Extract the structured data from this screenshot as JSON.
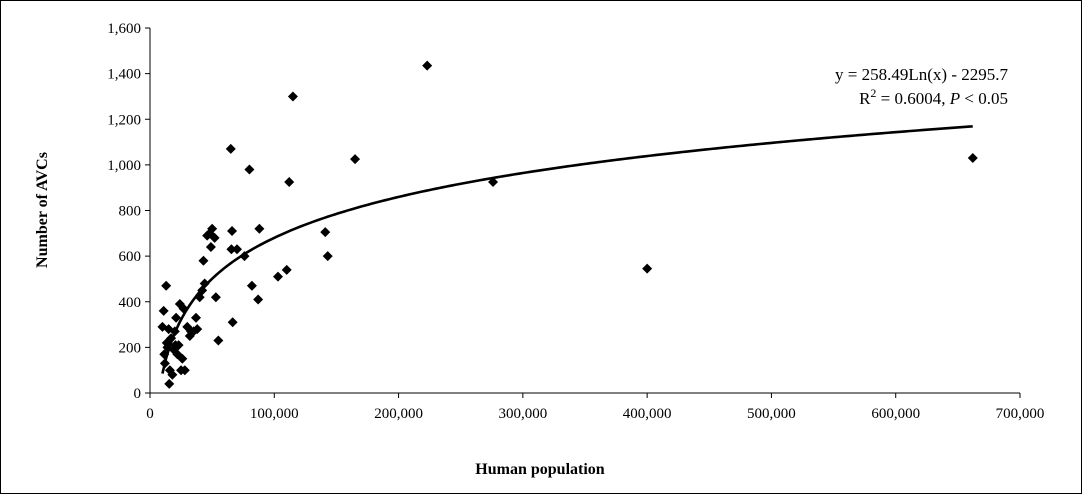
{
  "chart_data": {
    "type": "scatter",
    "title": "",
    "xlabel": "Human population",
    "ylabel": "Number of AVCs",
    "xlim": [
      0,
      700000
    ],
    "ylim": [
      0,
      1600
    ],
    "x_ticks": [
      0,
      100000,
      200000,
      300000,
      400000,
      500000,
      600000,
      700000
    ],
    "x_tick_labels": [
      "0",
      "100,000",
      "200,000",
      "300,000",
      "400,000",
      "500,000",
      "600,000",
      "700,000"
    ],
    "y_ticks": [
      0,
      200,
      400,
      600,
      800,
      1000,
      1200,
      1400,
      1600
    ],
    "y_tick_labels": [
      "0",
      "200",
      "400",
      "600",
      "800",
      "1,000",
      "1,200",
      "1,400",
      "1,600"
    ],
    "grid": false,
    "legend": false,
    "marker": "diamond",
    "marker_color": "#000000",
    "points": [
      [
        10000,
        290
      ],
      [
        11000,
        360
      ],
      [
        11500,
        170
      ],
      [
        12000,
        130
      ],
      [
        13000,
        470
      ],
      [
        13500,
        220
      ],
      [
        14000,
        200
      ],
      [
        15000,
        280
      ],
      [
        15500,
        40
      ],
      [
        16000,
        100
      ],
      [
        17000,
        240
      ],
      [
        18000,
        80
      ],
      [
        19000,
        190
      ],
      [
        20000,
        270
      ],
      [
        20500,
        210
      ],
      [
        21000,
        330
      ],
      [
        22000,
        170
      ],
      [
        23000,
        210
      ],
      [
        24000,
        390
      ],
      [
        25000,
        100
      ],
      [
        26000,
        150
      ],
      [
        27000,
        370
      ],
      [
        28000,
        100
      ],
      [
        30000,
        290
      ],
      [
        32000,
        250
      ],
      [
        33000,
        270
      ],
      [
        35000,
        270
      ],
      [
        37000,
        330
      ],
      [
        38000,
        280
      ],
      [
        40000,
        420
      ],
      [
        42000,
        450
      ],
      [
        43000,
        580
      ],
      [
        44000,
        480
      ],
      [
        46000,
        690
      ],
      [
        48000,
        700
      ],
      [
        49000,
        640
      ],
      [
        50000,
        720
      ],
      [
        52000,
        680
      ],
      [
        53000,
        420
      ],
      [
        55000,
        230
      ],
      [
        65000,
        1070
      ],
      [
        65500,
        630
      ],
      [
        66000,
        710
      ],
      [
        66500,
        310
      ],
      [
        70000,
        630
      ],
      [
        76000,
        600
      ],
      [
        80000,
        980
      ],
      [
        82000,
        470
      ],
      [
        87000,
        410
      ],
      [
        88000,
        720
      ],
      [
        103000,
        510
      ],
      [
        110000,
        540
      ],
      [
        112000,
        925
      ],
      [
        115000,
        1300
      ],
      [
        141000,
        705
      ],
      [
        143000,
        600
      ],
      [
        165000,
        1025
      ],
      [
        223000,
        1435
      ],
      [
        276000,
        925
      ],
      [
        400000,
        545
      ],
      [
        662000,
        1030
      ]
    ],
    "trendline": {
      "type": "logarithmic",
      "a": 258.49,
      "b": -2295.7,
      "x_range": [
        10000,
        662000
      ],
      "equation_text": "y = 258.49Ln(x) - 2295.7",
      "stats_parts": [
        "R",
        "2",
        " = 0.6004, ",
        "P",
        " < 0.05"
      ]
    }
  }
}
